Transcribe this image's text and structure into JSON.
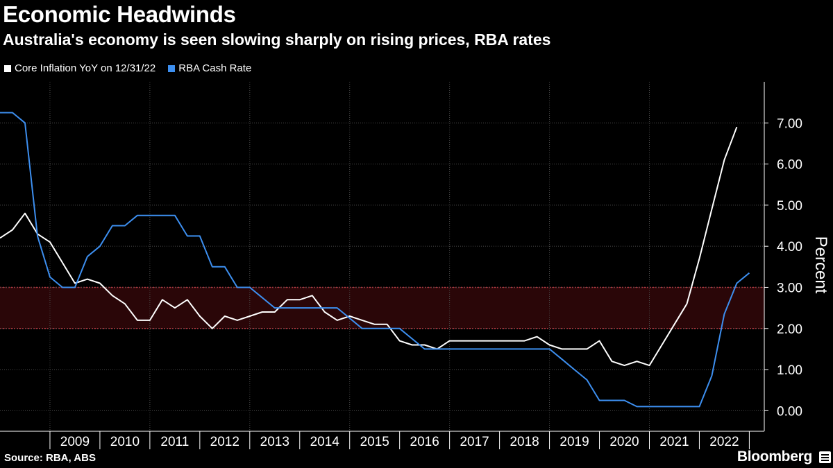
{
  "chart_data": {
    "type": "line",
    "title": "Economic Headwinds",
    "subtitle": "Australia's economy is seen slowing sharply on rising prices, RBA rates",
    "ylabel": "Percent",
    "ylim": [
      -0.5,
      8
    ],
    "yticks": [
      "0.00",
      "1.00",
      "2.00",
      "3.00",
      "4.00",
      "5.00",
      "6.00",
      "7.00"
    ],
    "ytick_values": [
      0,
      1,
      2,
      3,
      4,
      5,
      6,
      7
    ],
    "xlim": [
      2008.0,
      2023.3
    ],
    "xticks": [
      "2009",
      "2010",
      "2011",
      "2012",
      "2013",
      "2014",
      "2015",
      "2016",
      "2017",
      "2018",
      "2019",
      "2020",
      "2021",
      "2022"
    ],
    "target_band": [
      2,
      3
    ],
    "grid": true,
    "legend": "top-left",
    "series": [
      {
        "name": "Core Inflation YoY on 12/31/22",
        "color": "#ffffff",
        "points": [
          [
            2008.0,
            4.2
          ],
          [
            2008.25,
            4.4
          ],
          [
            2008.5,
            4.8
          ],
          [
            2008.75,
            4.3
          ],
          [
            2009.0,
            4.1
          ],
          [
            2009.25,
            3.6
          ],
          [
            2009.5,
            3.1
          ],
          [
            2009.75,
            3.2
          ],
          [
            2010.0,
            3.1
          ],
          [
            2010.25,
            2.8
          ],
          [
            2010.5,
            2.6
          ],
          [
            2010.75,
            2.2
          ],
          [
            2011.0,
            2.2
          ],
          [
            2011.25,
            2.7
          ],
          [
            2011.5,
            2.5
          ],
          [
            2011.75,
            2.7
          ],
          [
            2012.0,
            2.3
          ],
          [
            2012.25,
            2.0
          ],
          [
            2012.5,
            2.3
          ],
          [
            2012.75,
            2.2
          ],
          [
            2013.0,
            2.3
          ],
          [
            2013.25,
            2.4
          ],
          [
            2013.5,
            2.4
          ],
          [
            2013.75,
            2.7
          ],
          [
            2014.0,
            2.7
          ],
          [
            2014.25,
            2.8
          ],
          [
            2014.5,
            2.4
          ],
          [
            2014.75,
            2.2
          ],
          [
            2015.0,
            2.3
          ],
          [
            2015.25,
            2.2
          ],
          [
            2015.5,
            2.1
          ],
          [
            2015.75,
            2.1
          ],
          [
            2016.0,
            1.7
          ],
          [
            2016.25,
            1.6
          ],
          [
            2016.5,
            1.6
          ],
          [
            2016.75,
            1.5
          ],
          [
            2017.0,
            1.7
          ],
          [
            2017.25,
            1.7
          ],
          [
            2017.5,
            1.7
          ],
          [
            2017.75,
            1.7
          ],
          [
            2018.0,
            1.7
          ],
          [
            2018.25,
            1.7
          ],
          [
            2018.5,
            1.7
          ],
          [
            2018.75,
            1.8
          ],
          [
            2019.0,
            1.6
          ],
          [
            2019.25,
            1.5
          ],
          [
            2019.5,
            1.5
          ],
          [
            2019.75,
            1.5
          ],
          [
            2020.0,
            1.7
          ],
          [
            2020.25,
            1.2
          ],
          [
            2020.5,
            1.1
          ],
          [
            2020.75,
            1.2
          ],
          [
            2021.0,
            1.1
          ],
          [
            2021.25,
            1.6
          ],
          [
            2021.5,
            2.1
          ],
          [
            2021.75,
            2.6
          ],
          [
            2022.0,
            3.7
          ],
          [
            2022.25,
            4.9
          ],
          [
            2022.5,
            6.1
          ],
          [
            2022.75,
            6.9
          ]
        ]
      },
      {
        "name": "RBA Cash Rate",
        "color": "#3d8ff0",
        "points": [
          [
            2008.0,
            7.25
          ],
          [
            2008.25,
            7.25
          ],
          [
            2008.5,
            7.0
          ],
          [
            2008.75,
            4.25
          ],
          [
            2009.0,
            3.25
          ],
          [
            2009.25,
            3.0
          ],
          [
            2009.5,
            3.0
          ],
          [
            2009.75,
            3.75
          ],
          [
            2010.0,
            4.0
          ],
          [
            2010.25,
            4.5
          ],
          [
            2010.5,
            4.5
          ],
          [
            2010.75,
            4.75
          ],
          [
            2011.0,
            4.75
          ],
          [
            2011.25,
            4.75
          ],
          [
            2011.5,
            4.75
          ],
          [
            2011.75,
            4.25
          ],
          [
            2012.0,
            4.25
          ],
          [
            2012.25,
            3.5
          ],
          [
            2012.5,
            3.5
          ],
          [
            2012.75,
            3.0
          ],
          [
            2013.0,
            3.0
          ],
          [
            2013.25,
            2.75
          ],
          [
            2013.5,
            2.5
          ],
          [
            2013.75,
            2.5
          ],
          [
            2014.0,
            2.5
          ],
          [
            2014.25,
            2.5
          ],
          [
            2014.5,
            2.5
          ],
          [
            2014.75,
            2.5
          ],
          [
            2015.0,
            2.25
          ],
          [
            2015.25,
            2.0
          ],
          [
            2015.5,
            2.0
          ],
          [
            2015.75,
            2.0
          ],
          [
            2016.0,
            2.0
          ],
          [
            2016.25,
            1.75
          ],
          [
            2016.5,
            1.5
          ],
          [
            2016.75,
            1.5
          ],
          [
            2017.0,
            1.5
          ],
          [
            2017.25,
            1.5
          ],
          [
            2017.5,
            1.5
          ],
          [
            2017.75,
            1.5
          ],
          [
            2018.0,
            1.5
          ],
          [
            2018.25,
            1.5
          ],
          [
            2018.5,
            1.5
          ],
          [
            2018.75,
            1.5
          ],
          [
            2019.0,
            1.5
          ],
          [
            2019.25,
            1.25
          ],
          [
            2019.5,
            1.0
          ],
          [
            2019.75,
            0.75
          ],
          [
            2020.0,
            0.25
          ],
          [
            2020.25,
            0.25
          ],
          [
            2020.5,
            0.25
          ],
          [
            2020.75,
            0.1
          ],
          [
            2021.0,
            0.1
          ],
          [
            2021.25,
            0.1
          ],
          [
            2021.5,
            0.1
          ],
          [
            2021.75,
            0.1
          ],
          [
            2022.0,
            0.1
          ],
          [
            2022.25,
            0.85
          ],
          [
            2022.5,
            2.35
          ],
          [
            2022.75,
            3.1
          ],
          [
            2023.0,
            3.35
          ]
        ]
      }
    ]
  },
  "legend": {
    "core_inflation": "Core Inflation YoY on 12/31/22",
    "rba_rate": "RBA Cash Rate"
  },
  "footer": {
    "source": "Source: RBA, ABS",
    "brand": "Bloomberg"
  },
  "colors": {
    "background": "#000000",
    "grid": "#4a4a4a",
    "band_fill": "#2a0608",
    "band_edge": "#c0303a",
    "inflation_line": "#ffffff",
    "rate_line": "#3d8ff0",
    "axis": "#ffffff"
  }
}
